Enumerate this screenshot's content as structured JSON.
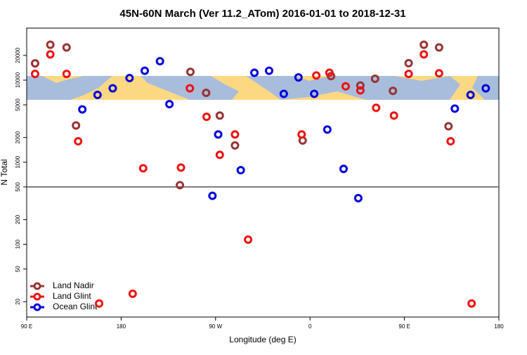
{
  "chart_data": {
    "type": "scatter",
    "title": "45N-60N March (Ver 11.2_ATom)   2016-01-01 to 2018-12-31",
    "x_label": "Longitude (deg E)",
    "y_label": "N Total",
    "xlim": [
      90,
      540
    ],
    "ylim": [
      13,
      43000
    ],
    "log_y": true,
    "xticks": [
      {
        "value": 90,
        "label": "90 E"
      },
      180,
      {
        "value": 270,
        "label": "90 W"
      },
      {
        "value": 360,
        "label": "0"
      },
      {
        "value": 450,
        "label": "90 E"
      },
      {
        "value": 540,
        "label": "180"
      }
    ],
    "yticks": [
      20,
      50,
      100,
      200,
      500,
      1000,
      2000,
      5000,
      10000,
      20000
    ],
    "hline": 500,
    "legend": "lower left",
    "series": [
      {
        "name": "Land Nadir",
        "color": "#993333",
        "x": [
          98,
          112.5,
          128,
          137,
          246,
          236,
          261,
          274,
          288.5,
          353,
          380,
          408,
          422,
          439,
          454,
          468.5,
          483,
          492
        ],
        "values": [
          16000,
          27000,
          25000,
          2800,
          12600,
          525,
          7000,
          3700,
          1600,
          1840,
          11200,
          8600,
          10400,
          7400,
          16100,
          27000,
          25000,
          2740
        ]
      },
      {
        "name": "Land Glint",
        "color": "#ee1111",
        "x": [
          98,
          112.5,
          128,
          139,
          159,
          191,
          201,
          237,
          245.5,
          261.4,
          274,
          288.5,
          301,
          352,
          366,
          378.5,
          394,
          408,
          423,
          440,
          454,
          468.5,
          483,
          494,
          514
        ],
        "values": [
          11900,
          20600,
          11900,
          1800,
          19,
          25,
          843,
          860,
          7950,
          3580,
          1230,
          2180,
          114,
          2180,
          11400,
          12300,
          8400,
          7500,
          4600,
          3700,
          11900,
          20600,
          12100,
          1800,
          19
        ]
      },
      {
        "name": "Ocean Glint",
        "color": "#0000dd",
        "x": [
          143,
          157.5,
          172,
          188,
          202.5,
          217,
          226,
          267,
          272.5,
          294,
          307,
          321,
          335,
          349,
          364,
          376.5,
          392,
          406,
          498,
          513,
          527.5
        ],
        "values": [
          4400,
          6600,
          7950,
          10600,
          13000,
          17000,
          5100,
          390,
          2180,
          800,
          12300,
          13000,
          6800,
          10800,
          6800,
          2500,
          830,
          365,
          4500,
          6600,
          7950
        ]
      }
    ]
  }
}
